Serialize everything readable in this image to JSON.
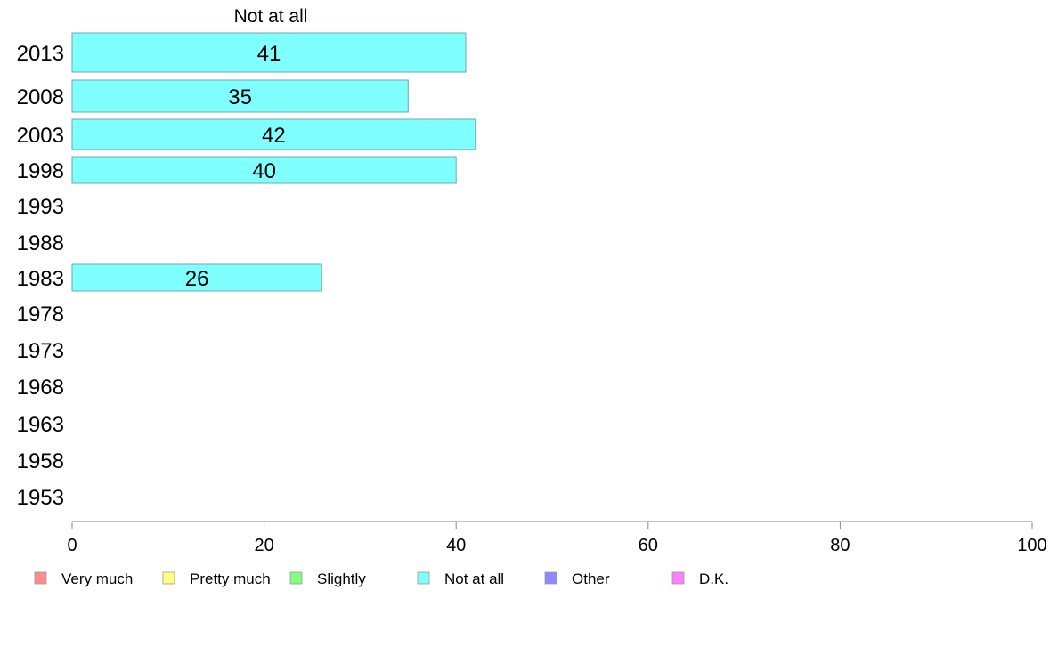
{
  "chart_data": {
    "type": "bar",
    "orientation": "horizontal",
    "title": "Not at all",
    "categories": [
      "2013",
      "2008",
      "2003",
      "1998",
      "1993",
      "1988",
      "1983",
      "1978",
      "1973",
      "1968",
      "1963",
      "1958",
      "1953"
    ],
    "series": [
      {
        "name": "Not at all",
        "color": "#80FFFF",
        "values": [
          41,
          35,
          42,
          40,
          null,
          null,
          26,
          null,
          null,
          null,
          null,
          null,
          null
        ]
      }
    ],
    "xlim": [
      0,
      100
    ],
    "xticks": [
      0,
      20,
      40,
      60,
      80,
      100
    ],
    "grid": false,
    "legend": {
      "placement": "bottom",
      "entries": [
        {
          "label": "Very much",
          "color": "#FF8C8C"
        },
        {
          "label": "Pretty much",
          "color": "#FFFF80"
        },
        {
          "label": "Slightly",
          "color": "#80FF80"
        },
        {
          "label": "Not at all",
          "color": "#80FFFF"
        },
        {
          "label": "Other",
          "color": "#8C8CFF"
        },
        {
          "label": "D.K.",
          "color": "#FF80FF"
        }
      ]
    }
  }
}
